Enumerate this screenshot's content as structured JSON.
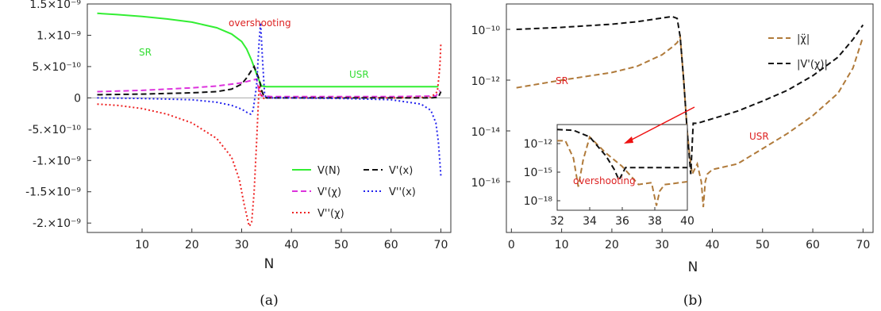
{
  "captions": [
    "(a)",
    "(b)"
  ],
  "chart_data": [
    {
      "type": "line",
      "panel": "(a)",
      "title": "",
      "xlabel": "N",
      "ylabel": "",
      "xlim": [
        -1,
        72
      ],
      "ylim": [
        -2.15e-09,
        1.5e-09
      ],
      "xticks": [
        "10",
        "20",
        "30",
        "40",
        "50",
        "60",
        "70"
      ],
      "yticks": [
        "1.5×10⁻⁹",
        "1.×10⁻⁹",
        "5.×10⁻¹⁰",
        "0",
        "-5.×10⁻¹⁰",
        "-1.×10⁻⁹",
        "-1.5×10⁻⁹",
        "-2.×10⁻⁹"
      ],
      "ytick_values": [
        1.5e-09,
        1e-09,
        5e-10,
        0,
        -5e-10,
        -1e-09,
        -1.5e-09,
        -2e-09
      ],
      "annotations": [
        {
          "text": "SR",
          "color": "#33dd33"
        },
        {
          "text": "overshooting",
          "color": "#dd2222"
        },
        {
          "text": "USR",
          "color": "#33dd33"
        }
      ],
      "legend_placement": "lower-right",
      "series": [
        {
          "name": "V(N)",
          "color": "#33ee33",
          "dash": "solid",
          "x": [
            1,
            5,
            10,
            15,
            20,
            25,
            28,
            30,
            31,
            32,
            33,
            33.6,
            34,
            35,
            40,
            50,
            60,
            69.5
          ],
          "y": [
            1.35e-09,
            1.33e-09,
            1.3e-09,
            1.26e-09,
            1.21e-09,
            1.12e-09,
            1.02e-09,
            9e-10,
            7.8e-10,
            6e-10,
            3.8e-10,
            2.6e-10,
            1.9e-10,
            1.8e-10,
            1.8e-10,
            1.8e-10,
            1.8e-10,
            1.8e-10
          ]
        },
        {
          "name": "V'(χ)",
          "color": "#dd33dd",
          "dash": "dashed",
          "x": [
            1,
            10,
            20,
            25,
            30,
            32,
            33,
            33.5,
            34,
            36,
            50,
            60,
            69,
            69.8
          ],
          "y": [
            1e-10,
            1.2e-10,
            1.6e-10,
            1.9e-10,
            2.4e-10,
            2.8e-10,
            3e-10,
            1e-10,
            3e-11,
            2e-11,
            2e-11,
            2e-11,
            3e-11,
            1.2e-10
          ]
        },
        {
          "name": "V''(χ)",
          "color": "#ee2222",
          "dash": "dotted",
          "x": [
            1,
            5,
            10,
            15,
            20,
            25,
            28,
            29.5,
            30.5,
            31.5,
            32,
            32.5,
            33,
            33.5,
            34,
            34.5,
            35,
            40,
            50,
            60,
            68,
            69.3,
            69.8,
            70
          ],
          "y": [
            -1e-10,
            -1.2e-10,
            -1.7e-10,
            -2.6e-10,
            -4e-10,
            -6.5e-10,
            -9.5e-10,
            -1.3e-09,
            -1.7e-09,
            -2.05e-09,
            -2e-09,
            -1.5e-09,
            -7e-10,
            2e-10,
            2e-11,
            -1e-11,
            0.0,
            0.0,
            0.0,
            0.0,
            1e-11,
            1e-10,
            5e-10,
            8.8e-10
          ]
        },
        {
          "name": "V'(x)",
          "color": "#111111",
          "dash": "dashed",
          "x": [
            1,
            10,
            20,
            25,
            28,
            30,
            31,
            32,
            32.5,
            33,
            33.5,
            34,
            34.5,
            35,
            40,
            50,
            60,
            68,
            69.5,
            70
          ],
          "y": [
            5e-11,
            6e-11,
            8e-11,
            1e-10,
            1.4e-10,
            2.2e-10,
            3.2e-10,
            4.4e-10,
            5e-10,
            4e-10,
            3e-10,
            1.2e-10,
            2e-11,
            0.0,
            0.0,
            0.0,
            0.0,
            0.0,
            1e-11,
            1e-10
          ]
        },
        {
          "name": "V''(x)",
          "color": "#2222ee",
          "dash": "dotted",
          "x": [
            1,
            10,
            20,
            25,
            28,
            30,
            31,
            31.8,
            32.3,
            33,
            33.5,
            33.8,
            34.2,
            34.6,
            35,
            40,
            50,
            60,
            66,
            68,
            69,
            69.5,
            70
          ],
          "y": [
            0.0,
            -1e-11,
            -3e-11,
            -7e-11,
            -1.2e-10,
            -1.8e-10,
            -2.3e-10,
            -2.6e-10,
            -2e-10,
            2e-10,
            9e-10,
            1.2e-09,
            6e-10,
            5e-11,
            0.0,
            0.0,
            -1e-11,
            -3e-11,
            -1e-10,
            -2e-10,
            -4e-10,
            -7e-10,
            -1.25e-09
          ]
        }
      ]
    },
    {
      "type": "line",
      "panel": "(b)",
      "title": "",
      "xlabel": "N",
      "ylabel": "",
      "yscale": "log",
      "xlim": [
        -1,
        72
      ],
      "ylim": [
        1e-18,
        1e-09
      ],
      "xticks": [
        "0",
        "10",
        "20",
        "30",
        "40",
        "50",
        "60",
        "70"
      ],
      "yticks": [
        "10⁻¹⁰",
        "10⁻¹²",
        "10⁻¹⁴",
        "10⁻¹⁶"
      ],
      "ytick_values": [
        1e-10,
        1e-12,
        1e-14,
        1e-16
      ],
      "annotations": [
        {
          "text": "SR",
          "color": "#dd2222"
        },
        {
          "text": "USR",
          "color": "#dd2222"
        },
        {
          "text": "overshooting",
          "color": "#dd2222"
        }
      ],
      "legend_placement": "top-right",
      "series": [
        {
          "name": "|χ̈|",
          "color": "#b07a3a",
          "dash": "dashed",
          "x": [
            1,
            10,
            20,
            25,
            30,
            32,
            33,
            33.6,
            34.3,
            35,
            35.5,
            36,
            37,
            37.8,
            38.2,
            38.6,
            39,
            40,
            45,
            50,
            55,
            60,
            65,
            68,
            70
          ],
          "y": [
            5e-13,
            1e-12,
            2e-12,
            3.5e-12,
            1e-11,
            2e-11,
            3e-11,
            5e-11,
            1e-12,
            1e-14,
            1e-15,
            2e-16,
            5e-16,
            1e-16,
            1e-17,
            1e-16,
            2e-16,
            3e-16,
            5e-16,
            2e-15,
            8e-15,
            4e-14,
            3e-13,
            3e-12,
            5e-11
          ]
        },
        {
          "name": "|V'(χ)|",
          "color": "#111111",
          "dash": "dashed",
          "x": [
            1,
            10,
            20,
            25,
            30,
            32,
            33,
            33.6,
            34.3,
            35,
            35.7,
            36.2,
            37,
            40,
            45,
            50,
            55,
            60,
            65,
            68,
            70
          ],
          "y": [
            1e-10,
            1.2e-10,
            1.6e-10,
            2e-10,
            2.8e-10,
            3.2e-10,
            2.7e-10,
            5e-11,
            1e-12,
            1e-14,
            2e-16,
            2e-14,
            2e-14,
            3e-14,
            6e-14,
            1.5e-13,
            4e-13,
            1.5e-12,
            8e-12,
            4e-11,
            1.5e-10
          ]
        }
      ],
      "inset": {
        "xlim": [
          32,
          40
        ],
        "ylim": [
          1e-19,
          1e-10
        ],
        "xticks": [
          "32",
          "34",
          "36",
          "38",
          "40"
        ],
        "yticks": [
          "10⁻¹²",
          "10⁻¹⁵",
          "10⁻¹⁸"
        ],
        "ytick_values": [
          1e-12,
          1e-15,
          1e-18
        ],
        "series": [
          {
            "name": "|χ̈|",
            "color": "#b07a3a",
            "dash": "dashed",
            "x": [
              32,
              32.5,
              33,
              33.3,
              33.6,
              34,
              35,
              36,
              37,
              37.8,
              38.1,
              38.3,
              38.6,
              39,
              40
            ],
            "y": [
              2e-12,
              2e-12,
              3e-14,
              3e-17,
              2e-14,
              5e-12,
              1e-13,
              4e-15,
              5e-17,
              8e-17,
              3e-19,
              1e-17,
              5e-17,
              6e-17,
              1e-16
            ]
          },
          {
            "name": "|V'(χ)|",
            "color": "#111111",
            "dash": "dashed",
            "x": [
              32,
              33,
              34,
              35,
              35.5,
              35.8,
              36.2,
              37,
              38,
              39,
              40
            ],
            "y": [
              3e-11,
              2.5e-11,
              5e-12,
              5e-14,
              2e-15,
              1.5e-16,
              3e-15,
              3e-15,
              3e-15,
              3e-15,
              3e-15
            ]
          }
        ]
      }
    }
  ]
}
